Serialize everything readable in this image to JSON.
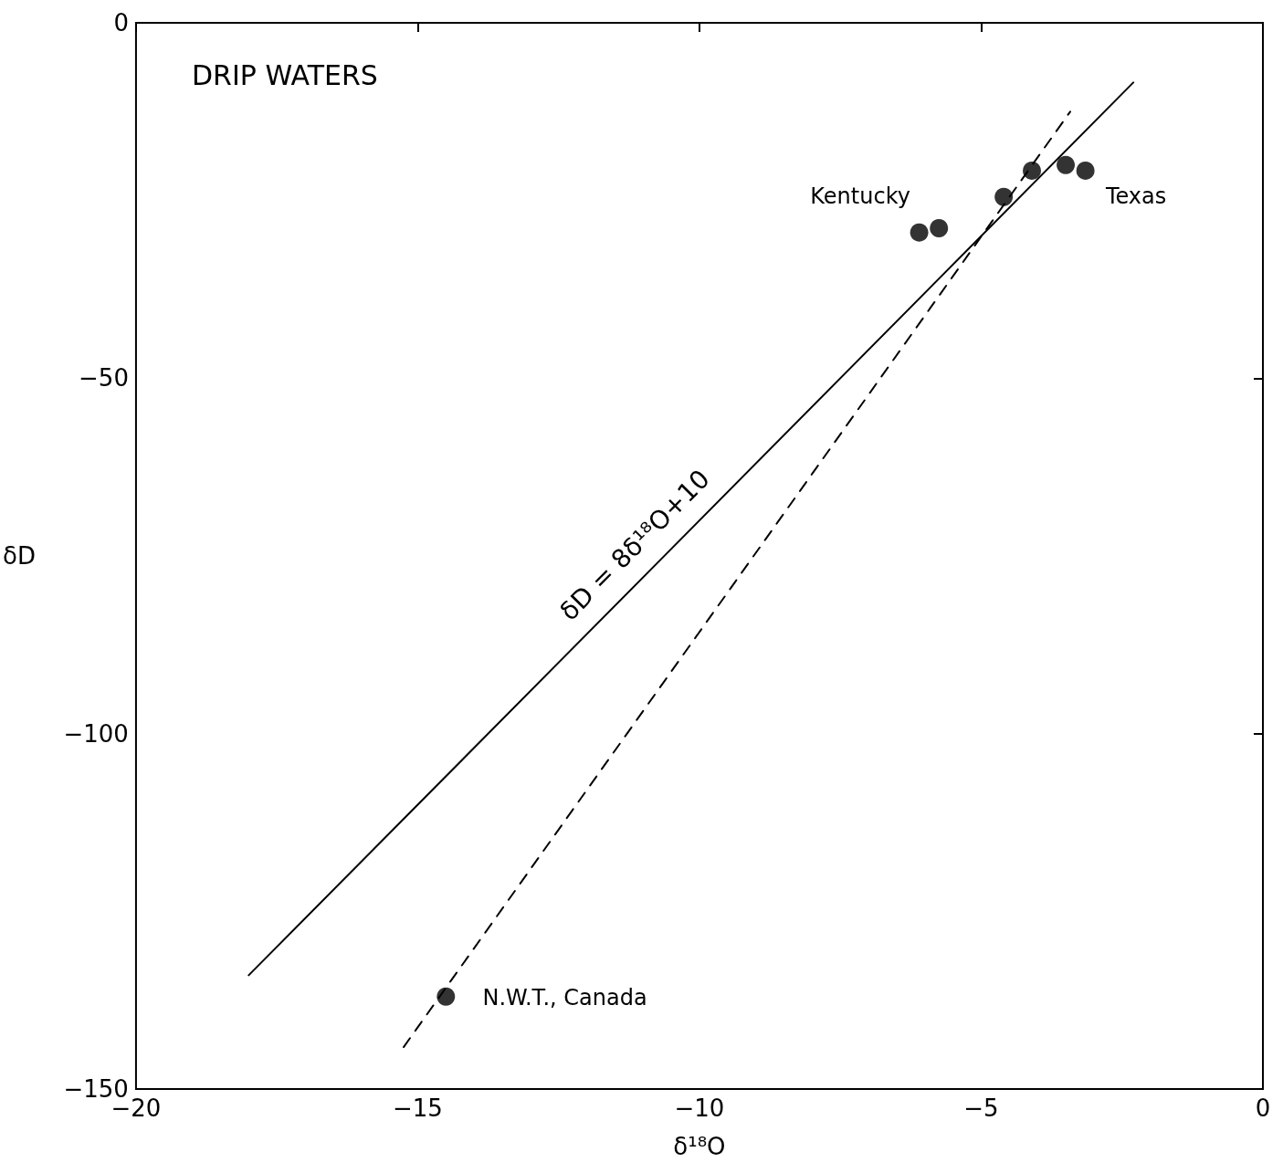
{
  "chart_data": {
    "type": "scatter",
    "title": "DRIP WATERS",
    "xlabel": "δ¹⁸O",
    "ylabel": "δD",
    "xlim": [
      -20,
      0
    ],
    "xticks": [
      -20,
      -15,
      -10,
      -5,
      0
    ],
    "ylim": [
      -150,
      0
    ],
    "yticks": [
      -150,
      -100,
      -50,
      0
    ],
    "grid": false,
    "series": [
      {
        "marker": "circle",
        "color": "#000000",
        "x": [
          -6.1,
          -5.75,
          -4.6,
          -4.1,
          -3.5,
          -3.15,
          -14.5
        ],
        "values": [
          -29.5,
          -28.9,
          -24.5,
          -20.8,
          -20.0,
          -20.8,
          -137
        ]
      },
      {
        "type": "line",
        "marker": "none",
        "line_style": "solid",
        "color": "#000000",
        "x": [
          -18.0,
          -2.3
        ],
        "values": [
          -134,
          -8.4
        ]
      },
      {
        "type": "line",
        "marker": "none",
        "line_style": "dashed",
        "color": "#000000",
        "x": [
          -15.25,
          -3.42
        ],
        "values": [
          -144.1,
          -12.5
        ]
      }
    ],
    "annotations": [
      "Kentucky",
      "Texas",
      "N.W.T., Canada",
      "δD = 8δ¹⁸O+10"
    ]
  }
}
